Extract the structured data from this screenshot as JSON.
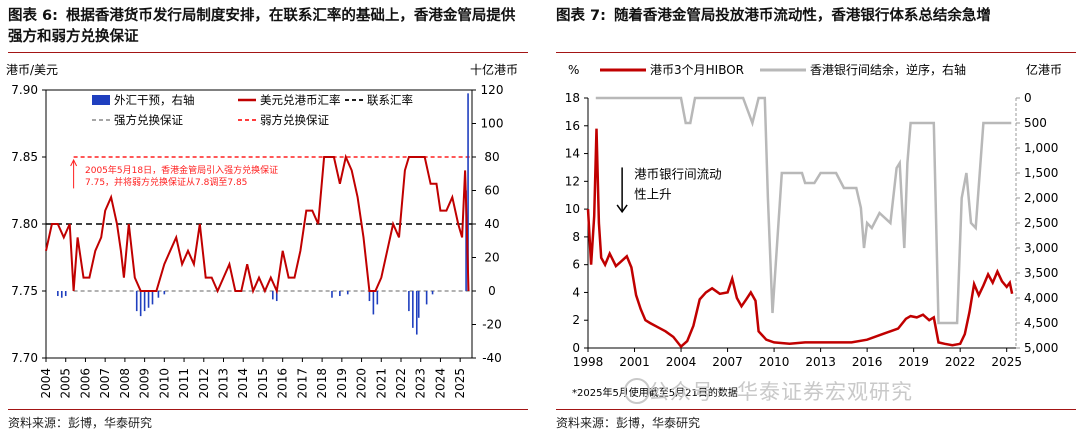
{
  "left": {
    "fig_label": "图表 6:",
    "title_text": "根据香港货币发行局制度安排，在联系汇率的基础上，香港金管局提供强方和弱方兑换保证",
    "left_unit": "港币/美元",
    "right_unit": "十亿港币",
    "annotation_lines": [
      "2005年5月18日，香港金管局引入强方兑换保证",
      "7.75，并将弱方兑换保证从7.8调至7.85"
    ],
    "source": "资料来源：彭博，华泰研究"
  },
  "right": {
    "fig_label": "图表 7:",
    "title_text": "随着香港金管局投放港币流动性，香港银行体系总结余急增",
    "left_unit": "%",
    "right_unit": "亿港币",
    "annotation_lines": [
      "港币银行间流动",
      "性上升"
    ],
    "footnote": "*2025年5月使用截至5月21日的数据",
    "source": "资料来源：彭博，华泰研究"
  },
  "watermark": "公众号 · 华泰证券宏观研究",
  "colors": {
    "red": "#c00000",
    "blue": "#1f3fbf",
    "gray": "#b8b8b8",
    "black": "#000000"
  },
  "chart_data": [
    {
      "type": "line",
      "title": "",
      "legend": [
        {
          "name": "外汇干预，右轴",
          "style": "bar",
          "color": "#1f3fbf"
        },
        {
          "name": "美元兑港币汇率",
          "style": "solid",
          "color": "#c00000"
        },
        {
          "name": "联系汇率",
          "style": "dashed",
          "color": "#000000"
        },
        {
          "name": "强方兑换保证",
          "style": "dashed",
          "color": "#999999"
        },
        {
          "name": "弱方兑换保证",
          "style": "dashed",
          "color": "#ff2020"
        }
      ],
      "legend_position": "top",
      "xlim": [
        2004,
        2025.6
      ],
      "x_ticks": [
        "2004",
        "2005",
        "2006",
        "2007",
        "2008",
        "2009",
        "2010",
        "2011",
        "2012",
        "2013",
        "2014",
        "2015",
        "2016",
        "2017",
        "2018",
        "2019",
        "2020",
        "2021",
        "2022",
        "2023",
        "2024",
        "2025"
      ],
      "y_left": {
        "lim": [
          7.7,
          7.9
        ],
        "ticks": [
          "7.70",
          "7.75",
          "7.80",
          "7.85",
          "7.90"
        ]
      },
      "y_right": {
        "lim": [
          -40,
          120
        ],
        "ticks": [
          "-40",
          "-20",
          "0",
          "20",
          "40",
          "60",
          "80",
          "100",
          "120"
        ]
      },
      "reference_lines": [
        {
          "name": "联系汇率",
          "value": 7.8
        },
        {
          "name": "强方兑换保证",
          "value": 7.75,
          "from": 2005.4
        },
        {
          "name": "弱方兑换保证",
          "value": 7.85,
          "from": 2005.4
        }
      ],
      "series": [
        {
          "name": "美元兑港币汇率",
          "axis": "left",
          "x": [
            2004.0,
            2004.3,
            2004.6,
            2004.9,
            2005.2,
            2005.4,
            2005.6,
            2005.9,
            2006.2,
            2006.5,
            2006.8,
            2007.0,
            2007.3,
            2007.6,
            2007.8,
            2007.95,
            2008.2,
            2008.5,
            2008.8,
            2009.0,
            2009.3,
            2009.6,
            2010.0,
            2010.3,
            2010.6,
            2010.9,
            2011.2,
            2011.5,
            2011.8,
            2012.1,
            2012.4,
            2012.7,
            2013.0,
            2013.3,
            2013.6,
            2013.9,
            2014.2,
            2014.5,
            2014.8,
            2015.1,
            2015.4,
            2015.7,
            2016.0,
            2016.3,
            2016.6,
            2016.9,
            2017.2,
            2017.5,
            2017.8,
            2018.1,
            2018.3,
            2018.6,
            2018.9,
            2019.2,
            2019.5,
            2019.8,
            2020.1,
            2020.4,
            2020.7,
            2021.0,
            2021.3,
            2021.6,
            2021.9,
            2022.2,
            2022.4,
            2022.7,
            2022.9,
            2023.2,
            2023.5,
            2023.8,
            2024.0,
            2024.3,
            2024.6,
            2024.9,
            2025.1,
            2025.25,
            2025.35,
            2025.42
          ],
          "y": [
            7.78,
            7.8,
            7.8,
            7.79,
            7.8,
            7.75,
            7.79,
            7.76,
            7.76,
            7.78,
            7.79,
            7.81,
            7.82,
            7.8,
            7.78,
            7.76,
            7.8,
            7.76,
            7.75,
            7.75,
            7.75,
            7.75,
            7.77,
            7.78,
            7.79,
            7.77,
            7.78,
            7.77,
            7.8,
            7.76,
            7.76,
            7.75,
            7.76,
            7.77,
            7.75,
            7.75,
            7.77,
            7.75,
            7.76,
            7.75,
            7.76,
            7.75,
            7.78,
            7.76,
            7.76,
            7.78,
            7.81,
            7.81,
            7.8,
            7.85,
            7.85,
            7.85,
            7.83,
            7.85,
            7.84,
            7.82,
            7.79,
            7.75,
            7.75,
            7.76,
            7.78,
            7.8,
            7.79,
            7.84,
            7.85,
            7.85,
            7.85,
            7.85,
            7.83,
            7.83,
            7.81,
            7.81,
            7.82,
            7.8,
            7.79,
            7.84,
            7.79,
            7.75
          ]
        },
        {
          "name": "外汇干预，右轴",
          "axis": "right",
          "type": "bar",
          "x": [
            2004.6,
            2004.8,
            2005.0,
            2008.6,
            2008.8,
            2009.0,
            2009.2,
            2009.4,
            2009.7,
            2010.0,
            2015.5,
            2015.7,
            2018.5,
            2018.9,
            2019.3,
            2020.4,
            2020.6,
            2020.8,
            2022.4,
            2022.6,
            2022.8,
            2022.9,
            2023.3,
            2023.6,
            2025.3,
            2025.4
          ],
          "y": [
            -3,
            -4,
            -3,
            -12,
            -15,
            -12,
            -10,
            -8,
            -4,
            -2,
            -5,
            -6,
            -4,
            -3,
            -2,
            -6,
            -14,
            -8,
            -12,
            -22,
            -26,
            -16,
            -8,
            -2,
            60,
            118
          ]
        }
      ]
    },
    {
      "type": "line",
      "title": "",
      "legend": [
        {
          "name": "港币3个月HIBOR",
          "style": "solid",
          "color": "#c00000"
        },
        {
          "name": "香港银行间结余，逆序，右轴",
          "style": "solid",
          "color": "#b8b8b8"
        }
      ],
      "legend_position": "top",
      "xlim": [
        1998,
        2025.6
      ],
      "x_ticks": [
        "1998",
        "2001",
        "2004",
        "2007",
        "2010",
        "2013",
        "2016",
        "2019",
        "2022",
        "2025"
      ],
      "y_left": {
        "lim": [
          0,
          18
        ],
        "ticks": [
          "0",
          "2",
          "4",
          "6",
          "8",
          "10",
          "12",
          "14",
          "16",
          "18"
        ]
      },
      "y_right": {
        "lim": [
          0,
          5000
        ],
        "reversed": true,
        "ticks": [
          "0",
          "500",
          "1,000",
          "1,500",
          "2,000",
          "2,500",
          "3,000",
          "3,500",
          "4,000",
          "4,500",
          "5,000"
        ]
      },
      "series": [
        {
          "name": "港币3个月HIBOR",
          "axis": "left",
          "x": [
            1998.0,
            1998.2,
            1998.4,
            1998.55,
            1998.7,
            1998.85,
            1999.1,
            1999.4,
            1999.8,
            2000.1,
            2000.5,
            2000.8,
            2001.1,
            2001.4,
            2001.7,
            2002.0,
            2002.5,
            2003.0,
            2003.5,
            2004.0,
            2004.4,
            2004.8,
            2005.2,
            2005.6,
            2006.0,
            2006.5,
            2007.0,
            2007.3,
            2007.6,
            2007.9,
            2008.2,
            2008.5,
            2008.8,
            2009.0,
            2009.5,
            2010.0,
            2011.0,
            2012.0,
            2013.0,
            2014.0,
            2015.0,
            2016.0,
            2017.0,
            2017.5,
            2018.0,
            2018.5,
            2018.8,
            2019.2,
            2019.6,
            2020.0,
            2020.3,
            2020.6,
            2021.0,
            2021.5,
            2022.0,
            2022.3,
            2022.6,
            2022.9,
            2023.2,
            2023.5,
            2023.8,
            2024.1,
            2024.4,
            2024.7,
            2025.0,
            2025.2,
            2025.35
          ],
          "y": [
            10.0,
            6.0,
            9.5,
            15.8,
            9.0,
            6.5,
            6.0,
            6.8,
            5.9,
            6.2,
            6.6,
            5.8,
            3.8,
            2.8,
            2.0,
            1.8,
            1.5,
            1.2,
            0.8,
            0.1,
            0.5,
            1.6,
            3.5,
            4.0,
            4.3,
            3.9,
            4.0,
            5.0,
            3.6,
            3.0,
            3.5,
            4.0,
            3.4,
            1.2,
            0.6,
            0.4,
            0.3,
            0.4,
            0.4,
            0.4,
            0.4,
            0.6,
            1.0,
            1.2,
            1.4,
            2.1,
            2.3,
            2.2,
            2.4,
            2.0,
            2.2,
            0.4,
            0.3,
            0.2,
            0.3,
            1.0,
            2.6,
            4.6,
            3.8,
            4.5,
            5.3,
            4.7,
            5.5,
            4.8,
            4.4,
            4.7,
            3.9
          ]
        },
        {
          "name": "香港银行间结余，逆序，右轴",
          "axis": "right",
          "x": [
            1998.5,
            1999.0,
            2001.0,
            2003.5,
            2004.0,
            2004.3,
            2004.6,
            2004.9,
            2005.5,
            2008.0,
            2008.6,
            2009.0,
            2009.4,
            2009.6,
            2009.9,
            2010.5,
            2011.0,
            2011.8,
            2012.0,
            2012.6,
            2013.0,
            2014.0,
            2014.5,
            2015.3,
            2015.6,
            2015.8,
            2016.0,
            2016.3,
            2016.8,
            2017.5,
            2017.9,
            2018.1,
            2018.4,
            2018.6,
            2018.8,
            2019.2,
            2019.6,
            2020.0,
            2020.3,
            2020.6,
            2021.0,
            2021.8,
            2022.1,
            2022.4,
            2022.7,
            2023.0,
            2023.5,
            2024.0,
            2024.8,
            2025.3
          ],
          "y": [
            0,
            0,
            0,
            0,
            0,
            500,
            500,
            0,
            0,
            0,
            500,
            0,
            0,
            2000,
            4300,
            1500,
            1500,
            1500,
            1700,
            1700,
            1500,
            1500,
            1800,
            1800,
            2200,
            3000,
            2500,
            2600,
            2300,
            2500,
            1400,
            1300,
            3000,
            1300,
            500,
            500,
            500,
            500,
            500,
            4500,
            4500,
            4500,
            2000,
            1500,
            2500,
            2600,
            500,
            500,
            500,
            500
          ]
        }
      ]
    }
  ]
}
